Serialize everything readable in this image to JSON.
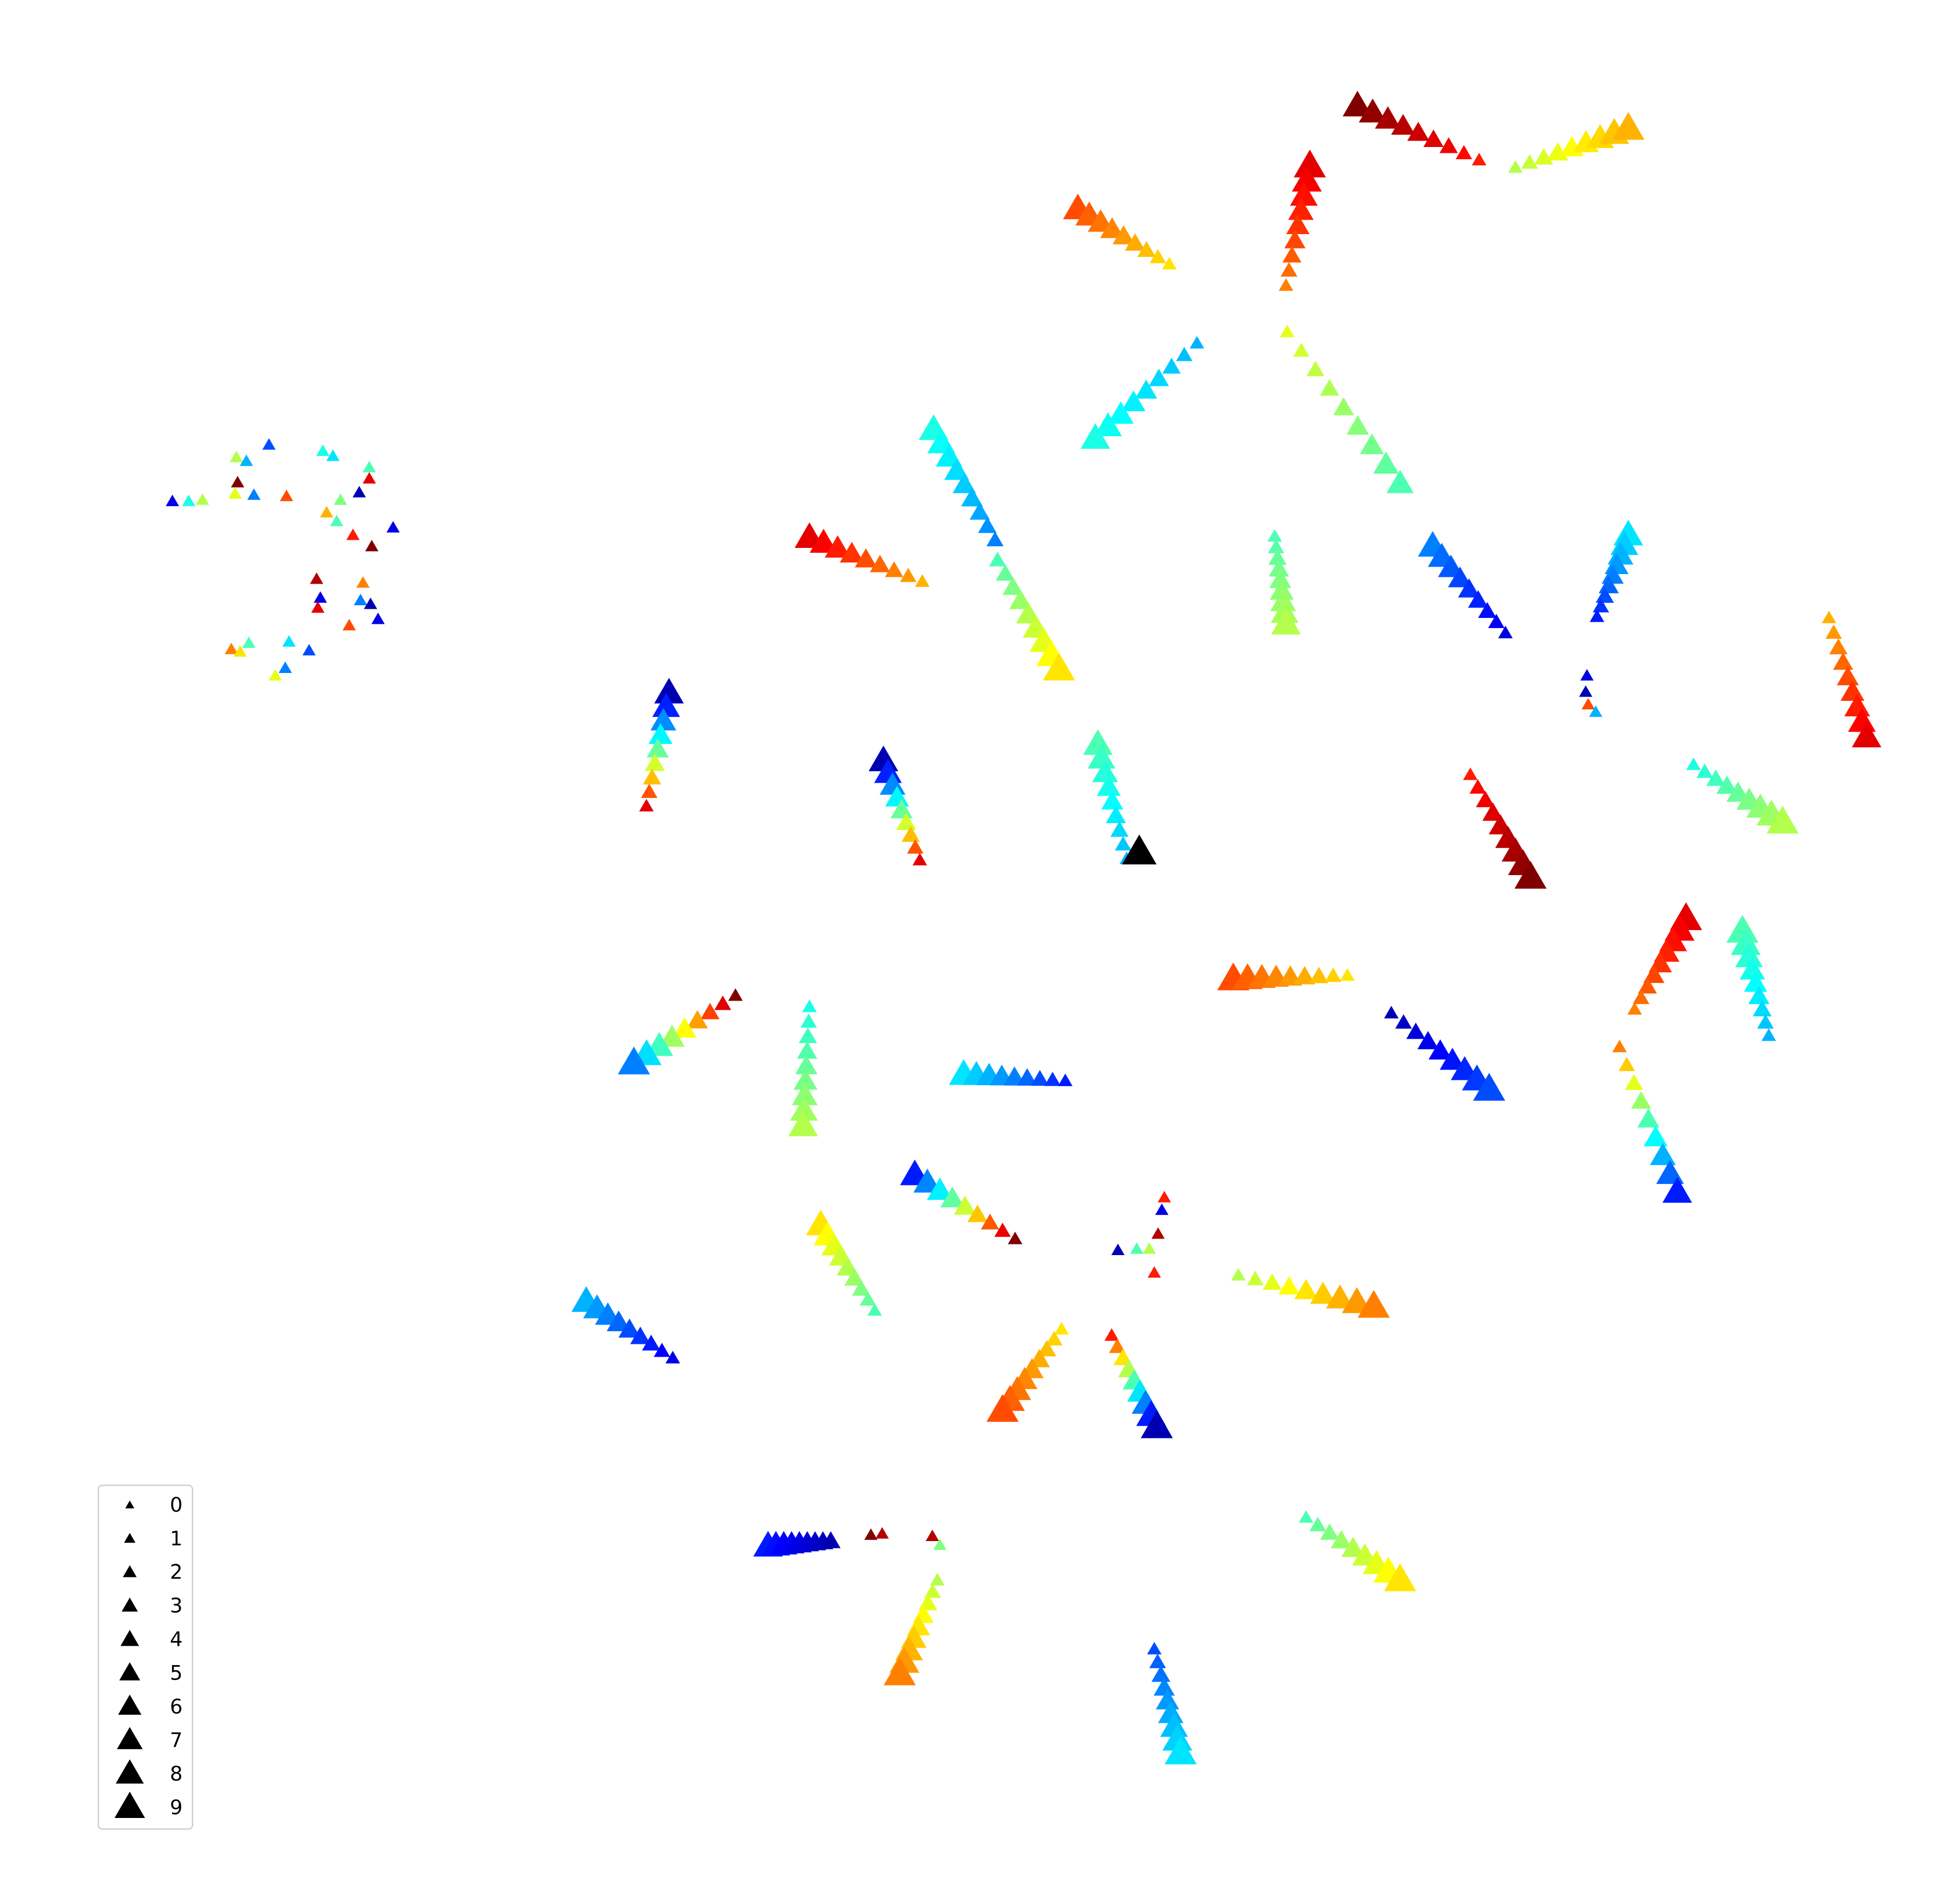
{
  "chart_data": {
    "type": "scatter",
    "title": "",
    "xlabel": "",
    "ylabel": "",
    "axes_visible": false,
    "grid": false,
    "marker": "triangle-up",
    "colormap": "jet",
    "xlim": [
      0,
      1550
    ],
    "ylim": [
      1505,
      0
    ],
    "legend": {
      "placement": "lower-left",
      "entries": [
        "0",
        "1",
        "2",
        "3",
        "4",
        "5",
        "6",
        "7",
        "8",
        "9"
      ]
    },
    "special_points": [
      {
        "x": 902,
        "y": 680,
        "size_level": 9,
        "color": "#000000"
      }
    ],
    "strands": [
      {
        "x0": 1076,
        "y0": 85,
        "x1": 1173,
        "y1": 128,
        "c0": 1.0,
        "c1": 0.85,
        "s0": 7,
        "s1": 1
      },
      {
        "x0": 1202,
        "y0": 134,
        "x1": 1292,
        "y1": 103,
        "c0": 0.55,
        "c1": 0.7,
        "s0": 1,
        "s1": 8
      },
      {
        "x0": 1038,
        "y0": 133,
        "x1": 1019,
        "y1": 228,
        "c0": 0.9,
        "c1": 0.75,
        "s0": 8,
        "s1": 1
      },
      {
        "x0": 853,
        "y0": 167,
        "x1": 926,
        "y1": 211,
        "c0": 0.8,
        "c1": 0.65,
        "s0": 7,
        "s1": 1
      },
      {
        "x0": 948,
        "y0": 274,
        "x1": 867,
        "y1": 350,
        "c0": 0.3,
        "c1": 0.4,
        "s0": 1,
        "s1": 7
      },
      {
        "x0": 1020,
        "y0": 265,
        "x1": 1110,
        "y1": 386,
        "c0": 0.6,
        "c1": 0.45,
        "s0": 1,
        "s1": 6
      },
      {
        "x0": 738,
        "y0": 343,
        "x1": 787,
        "y1": 431,
        "c0": 0.4,
        "c1": 0.25,
        "s0": 7,
        "s1": 2
      },
      {
        "x0": 789,
        "y0": 447,
        "x1": 838,
        "y1": 534,
        "c0": 0.45,
        "c1": 0.65,
        "s0": 2,
        "s1": 8
      },
      {
        "x0": 639,
        "y0": 429,
        "x1": 729,
        "y1": 464,
        "c0": 0.9,
        "c1": 0.7,
        "s0": 7,
        "s1": 1
      },
      {
        "x0": 1010,
        "y0": 428,
        "x1": 1019,
        "y1": 498,
        "c0": 0.45,
        "c1": 0.55,
        "s0": 1,
        "s1": 7
      },
      {
        "x0": 1136,
        "y0": 436,
        "x1": 1194,
        "y1": 505,
        "c0": 0.25,
        "c1": 0.1,
        "s0": 7,
        "s1": 1
      },
      {
        "x0": 1292,
        "y0": 427,
        "x1": 1267,
        "y1": 492,
        "c0": 0.35,
        "c1": 0.15,
        "s0": 7,
        "s1": 1
      },
      {
        "x0": 1452,
        "y0": 493,
        "x1": 1482,
        "y1": 588,
        "c0": 0.7,
        "c1": 0.9,
        "s0": 1,
        "s1": 7
      },
      {
        "x0": 527,
        "y0": 553,
        "x1": 509,
        "y1": 643,
        "c0": 0.05,
        "c1": 0.9,
        "s0": 7,
        "s1": 1
      },
      {
        "x0": 698,
        "y0": 607,
        "x1": 727,
        "y1": 686,
        "c0": 0.05,
        "c1": 0.9,
        "s0": 7,
        "s1": 1
      },
      {
        "x0": 869,
        "y0": 594,
        "x1": 892,
        "y1": 685,
        "c0": 0.45,
        "c1": 0.3,
        "s0": 7,
        "s1": 1
      },
      {
        "x0": 1166,
        "y0": 618,
        "x1": 1214,
        "y1": 700,
        "c0": 0.85,
        "c1": 1.0,
        "s0": 1,
        "s1": 8
      },
      {
        "x0": 1344,
        "y0": 610,
        "x1": 1415,
        "y1": 656,
        "c0": 0.4,
        "c1": 0.55,
        "s0": 1,
        "s1": 8
      },
      {
        "x0": 1338,
        "y0": 733,
        "x1": 1297,
        "y1": 805,
        "c0": 0.9,
        "c1": 0.75,
        "s0": 8,
        "s1": 1
      },
      {
        "x0": 1383,
        "y0": 743,
        "x1": 1404,
        "y1": 826,
        "c0": 0.45,
        "c1": 0.3,
        "s0": 8,
        "s1": 1
      },
      {
        "x0": 977,
        "y0": 781,
        "x1": 1068,
        "y1": 778,
        "c0": 0.8,
        "c1": 0.65,
        "s0": 8,
        "s1": 1
      },
      {
        "x0": 1103,
        "y0": 808,
        "x1": 1181,
        "y1": 869,
        "c0": 0.05,
        "c1": 0.2,
        "s0": 1,
        "s1": 8
      },
      {
        "x0": 580,
        "y0": 794,
        "x1": 499,
        "y1": 848,
        "c0": 1.0,
        "c1": 0.25,
        "s0": 1,
        "s1": 8
      },
      {
        "x0": 639,
        "y0": 803,
        "x1": 634,
        "y1": 898,
        "c0": 0.4,
        "c1": 0.55,
        "s0": 1,
        "s1": 7
      },
      {
        "x0": 762,
        "y0": 857,
        "x1": 843,
        "y1": 862,
        "c0": 0.35,
        "c1": 0.15,
        "s0": 7,
        "s1": 1
      },
      {
        "x0": 1285,
        "y0": 835,
        "x1": 1331,
        "y1": 951,
        "c0": 0.75,
        "c1": 0.15,
        "s0": 1,
        "s1": 7
      },
      {
        "x0": 723,
        "y0": 937,
        "x1": 803,
        "y1": 988,
        "c0": 0.15,
        "c1": 1.0,
        "s0": 7,
        "s1": 1
      },
      {
        "x0": 648,
        "y0": 977,
        "x1": 691,
        "y1": 1045,
        "c0": 0.65,
        "c1": 0.45,
        "s0": 7,
        "s1": 1
      },
      {
        "x0": 981,
        "y0": 1017,
        "x1": 1089,
        "y1": 1042,
        "c0": 0.55,
        "c1": 0.75,
        "s0": 1,
        "s1": 8
      },
      {
        "x0": 461,
        "y0": 1038,
        "x1": 530,
        "y1": 1083,
        "c0": 0.3,
        "c1": 0.1,
        "s0": 7,
        "s1": 1
      },
      {
        "x0": 840,
        "y0": 1060,
        "x1": 793,
        "y1": 1125,
        "c0": 0.65,
        "c1": 0.8,
        "s0": 1,
        "s1": 8
      },
      {
        "x0": 880,
        "y0": 1065,
        "x1": 916,
        "y1": 1138,
        "c0": 0.85,
        "c1": 0.05,
        "s0": 1,
        "s1": 8
      },
      {
        "x0": 606,
        "y0": 1233,
        "x1": 656,
        "y1": 1229,
        "c0": 0.15,
        "c1": 0.05,
        "s0": 7,
        "s1": 3
      },
      {
        "x0": 741,
        "y0": 1260,
        "x1": 711,
        "y1": 1335,
        "c0": 0.55,
        "c1": 0.75,
        "s0": 1,
        "s1": 8
      },
      {
        "x0": 1035,
        "y0": 1210,
        "x1": 1110,
        "y1": 1260,
        "c0": 0.45,
        "c1": 0.65,
        "s0": 1,
        "s1": 8
      },
      {
        "x0": 914,
        "y0": 1315,
        "x1": 935,
        "y1": 1398,
        "c0": 0.2,
        "c1": 0.35,
        "s0": 1,
        "s1": 8
      }
    ],
    "isolated_points": [
      {
        "x": 131,
        "y": 400,
        "c": 0.1
      },
      {
        "x": 144,
        "y": 400,
        "c": 0.4
      },
      {
        "x": 155,
        "y": 399,
        "c": 0.55
      },
      {
        "x": 182,
        "y": 365,
        "c": 0.55
      },
      {
        "x": 190,
        "y": 368,
        "c": 0.3
      },
      {
        "x": 208,
        "y": 355,
        "c": 0.2
      },
      {
        "x": 251,
        "y": 360,
        "c": 0.4
      },
      {
        "x": 259,
        "y": 364,
        "c": 0.35
      },
      {
        "x": 288,
        "y": 373,
        "c": 0.45
      },
      {
        "x": 288,
        "y": 382,
        "c": 0.9
      },
      {
        "x": 183,
        "y": 385,
        "c": 1.0
      },
      {
        "x": 181,
        "y": 394,
        "c": 0.6
      },
      {
        "x": 196,
        "y": 395,
        "c": 0.25
      },
      {
        "x": 222,
        "y": 396,
        "c": 0.8
      },
      {
        "x": 280,
        "y": 393,
        "c": 0.05
      },
      {
        "x": 265,
        "y": 399,
        "c": 0.5
      },
      {
        "x": 254,
        "y": 409,
        "c": 0.7
      },
      {
        "x": 262,
        "y": 416,
        "c": 0.45
      },
      {
        "x": 307,
        "y": 421,
        "c": 0.1
      },
      {
        "x": 275,
        "y": 427,
        "c": 0.85
      },
      {
        "x": 290,
        "y": 436,
        "c": 1.0
      },
      {
        "x": 246,
        "y": 462,
        "c": 0.95
      },
      {
        "x": 283,
        "y": 465,
        "c": 0.75
      },
      {
        "x": 249,
        "y": 477,
        "c": 0.1
      },
      {
        "x": 247,
        "y": 485,
        "c": 0.9
      },
      {
        "x": 281,
        "y": 479,
        "c": 0.25
      },
      {
        "x": 289,
        "y": 482,
        "c": 0.05
      },
      {
        "x": 295,
        "y": 494,
        "c": 0.1
      },
      {
        "x": 272,
        "y": 499,
        "c": 0.8
      },
      {
        "x": 224,
        "y": 512,
        "c": 0.35
      },
      {
        "x": 178,
        "y": 518,
        "c": 0.75
      },
      {
        "x": 185,
        "y": 520,
        "c": 0.65
      },
      {
        "x": 192,
        "y": 513,
        "c": 0.45
      },
      {
        "x": 240,
        "y": 519,
        "c": 0.2
      },
      {
        "x": 221,
        "y": 533,
        "c": 0.25
      },
      {
        "x": 213,
        "y": 539,
        "c": 0.6
      },
      {
        "x": 1259,
        "y": 539,
        "c": 0.1
      },
      {
        "x": 1258,
        "y": 552,
        "c": 0.05
      },
      {
        "x": 1260,
        "y": 562,
        "c": 0.8
      },
      {
        "x": 1266,
        "y": 568,
        "c": 0.3
      },
      {
        "x": 922,
        "y": 955,
        "c": 0.85
      },
      {
        "x": 920,
        "y": 965,
        "c": 0.1
      },
      {
        "x": 917,
        "y": 984,
        "c": 0.95
      },
      {
        "x": 885,
        "y": 997,
        "c": 0.05
      },
      {
        "x": 900,
        "y": 996,
        "c": 0.45
      },
      {
        "x": 910,
        "y": 996,
        "c": 0.55
      },
      {
        "x": 914,
        "y": 1015,
        "c": 0.85
      },
      {
        "x": 688,
        "y": 1224,
        "c": 1.0
      },
      {
        "x": 697,
        "y": 1223,
        "c": 0.95
      },
      {
        "x": 737,
        "y": 1225,
        "c": 0.95
      },
      {
        "x": 743,
        "y": 1232,
        "c": 0.5
      }
    ]
  }
}
